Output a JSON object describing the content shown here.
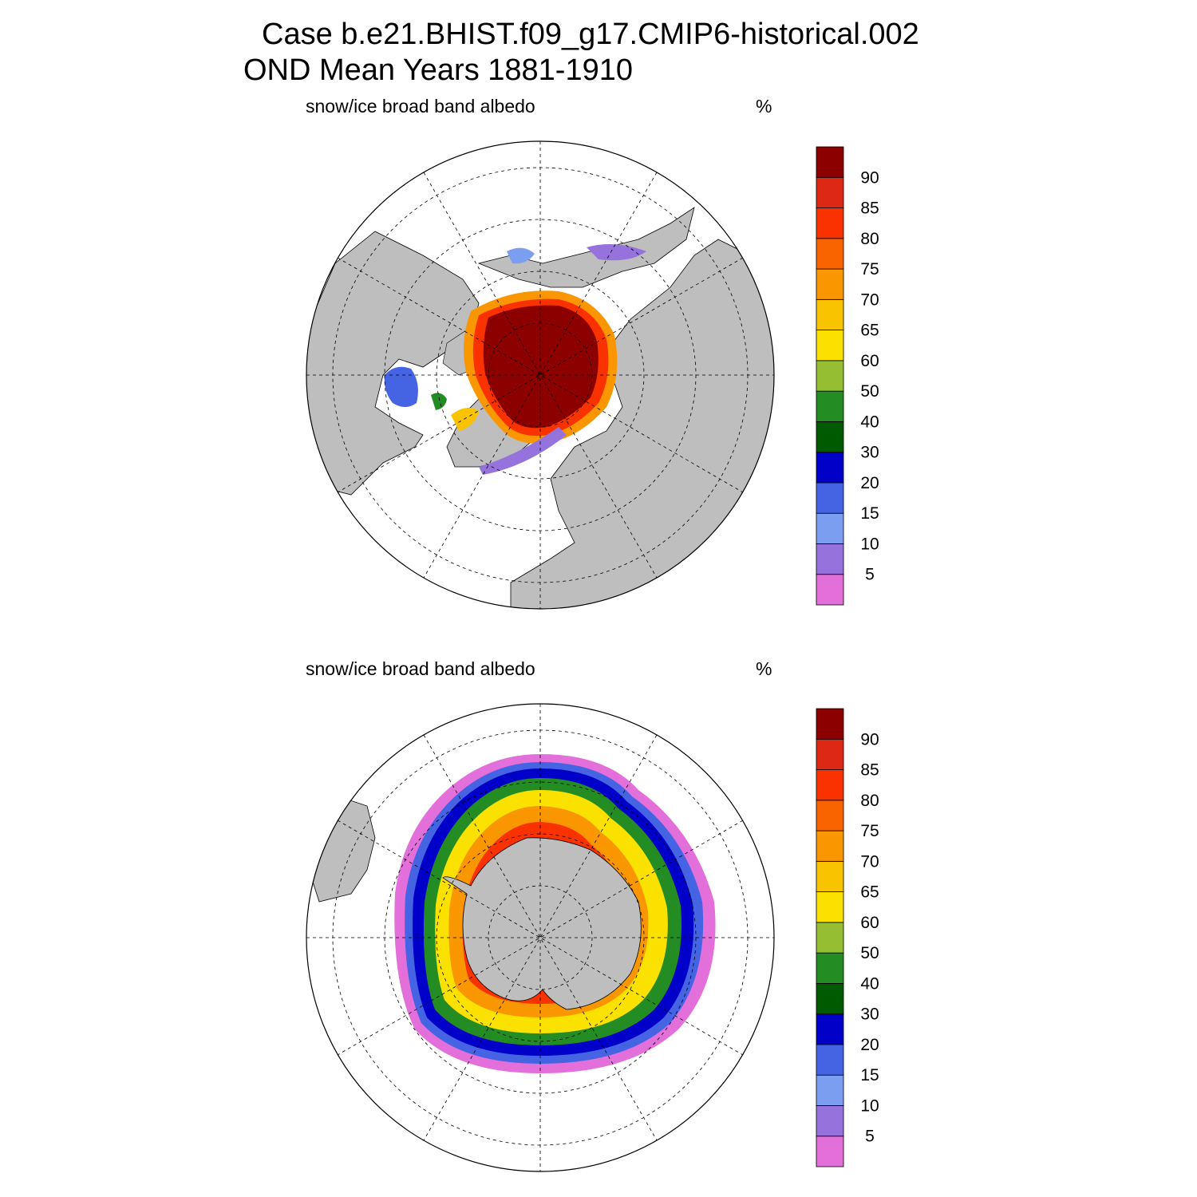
{
  "title": {
    "line1": "Case b.e21.BHIST.f09_g17.CMIP6-historical.002",
    "line2": "OND Mean   Years 1881-1910"
  },
  "panels": [
    {
      "id": "north",
      "hemisphere": "north",
      "variable_label": "snow/ice broad band albedo",
      "units_label": "%"
    },
    {
      "id": "south",
      "hemisphere": "south",
      "variable_label": "snow/ice broad band albedo",
      "units_label": "%"
    }
  ],
  "colorbar": {
    "levels": [
      "5",
      "10",
      "15",
      "20",
      "30",
      "40",
      "50",
      "60",
      "65",
      "70",
      "75",
      "80",
      "85",
      "90"
    ],
    "colors": [
      "#e36fdb",
      "#9673dc",
      "#7b9ef0",
      "#4464e3",
      "#0000c8",
      "#005a00",
      "#238c23",
      "#96be32",
      "#fae100",
      "#fac300",
      "#fa9600",
      "#fa6400",
      "#fa3200",
      "#dc2814",
      "#8c0000"
    ]
  },
  "map_colors": {
    "land": "#bebebe",
    "ocean": "#ffffff",
    "grid": "#000000"
  }
}
